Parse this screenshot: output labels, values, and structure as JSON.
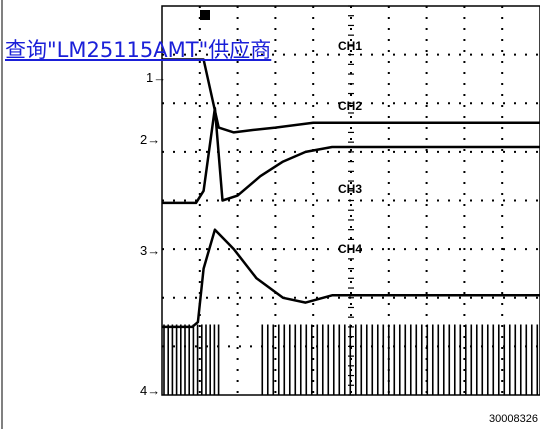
{
  "overlay_link": "查询\"LM25115AMT\"供应商",
  "figure_id": "30008326",
  "chart_data": {
    "type": "line",
    "title": "",
    "xlabel": "",
    "ylabel": "",
    "grid": true,
    "divisions_x": 10,
    "divisions_y": 8,
    "channels": [
      {
        "name": "CH1",
        "marker": "1"
      },
      {
        "name": "CH2",
        "marker": "2"
      },
      {
        "name": "CH3",
        "marker": "3"
      },
      {
        "name": "CH4",
        "marker": "4"
      }
    ],
    "series": [
      {
        "name": "CH1",
        "x": [
          0,
          0.55,
          0.6,
          1.1,
          1.5,
          1.9,
          2.4,
          3.0,
          4.0,
          6.0,
          10.0
        ],
        "y": [
          6.9,
          6.9,
          6.9,
          6.9,
          5.5,
          5.4,
          5.45,
          5.5,
          5.6,
          5.6,
          5.6
        ]
      },
      {
        "name": "CH2",
        "x": [
          0,
          0.9,
          1.1,
          1.4,
          1.6,
          2.0,
          2.6,
          3.2,
          3.8,
          4.5,
          6.0,
          10.0
        ],
        "y": [
          3.95,
          3.95,
          4.2,
          5.9,
          4.0,
          4.1,
          4.5,
          4.8,
          5.0,
          5.1,
          5.1,
          5.1
        ]
      },
      {
        "name": "CH3",
        "x": [
          0,
          0.8,
          0.95,
          1.1,
          1.4,
          1.9,
          2.5,
          3.2,
          3.8,
          4.5,
          6.0,
          10.0
        ],
        "y": [
          1.4,
          1.4,
          1.5,
          2.6,
          3.4,
          3.0,
          2.4,
          2.0,
          1.9,
          2.05,
          2.05,
          2.05
        ]
      },
      {
        "name": "CH4",
        "x": [
          0.0,
          0.8,
          1.5,
          2.6,
          3.1,
          10.0
        ],
        "y": [
          -0.05,
          1.0,
          1.0,
          -0.05,
          1.0,
          1.0
        ],
        "segments": [
          [
            0.0,
            1.5
          ],
          [
            2.6,
            10.0
          ]
        ],
        "gap": [
          1.5,
          2.6
        ]
      }
    ]
  }
}
